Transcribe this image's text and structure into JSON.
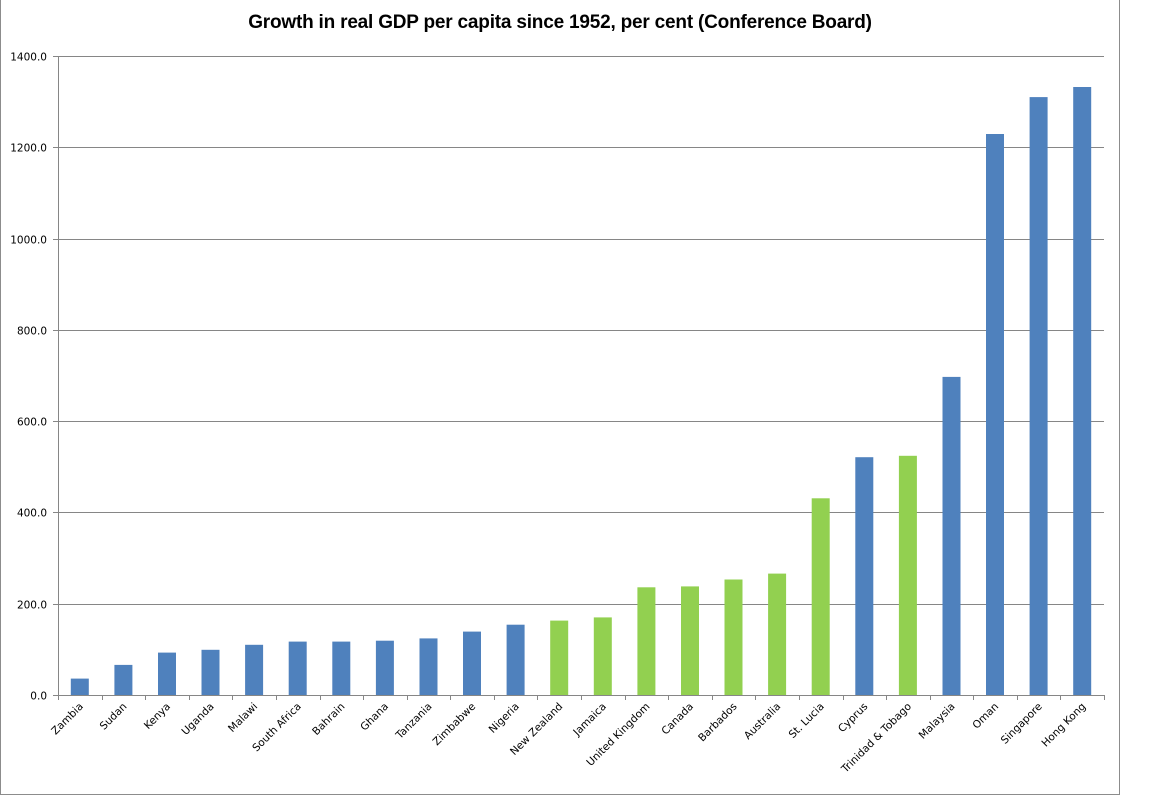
{
  "chart_data": {
    "type": "bar",
    "title": "Growth in real GDP per capita since 1952, per cent (Conference Board)",
    "xlabel": "",
    "ylabel": "",
    "ylim": [
      0,
      1400
    ],
    "yticks": [
      "0.0",
      "200.0",
      "400.0",
      "600.0",
      "800.0",
      "1000.0",
      "1200.0",
      "1400.0"
    ],
    "ytick_values": [
      0,
      200,
      400,
      600,
      800,
      1000,
      1200,
      1400
    ],
    "grid": true,
    "legend": "none",
    "colors": {
      "blue": "#4F81BD",
      "green": "#92D050"
    },
    "categories": [
      "Zambia",
      "Sudan",
      "Kenya",
      "Uganda",
      "Malawi",
      "South Africa",
      "Bahrain",
      "Ghana",
      "Tanzania",
      "Zimbabwe",
      "Nigeria",
      "New Zealand",
      "Jamaica",
      "United Kingdom",
      "Canada",
      "Barbados",
      "Australia",
      "St. Lucia",
      "Cyprus",
      "Trinidad & Tobago",
      "Malaysia",
      "Oman",
      "Singapore",
      "Hong Kong"
    ],
    "values": [
      36,
      66,
      93,
      99,
      110,
      117,
      117,
      119,
      124,
      139,
      154,
      163,
      170,
      236,
      238,
      253,
      266,
      431,
      521,
      524,
      697,
      1229,
      1310,
      1332
    ],
    "bar_colors": [
      "blue",
      "blue",
      "blue",
      "blue",
      "blue",
      "blue",
      "blue",
      "blue",
      "blue",
      "blue",
      "blue",
      "green",
      "green",
      "green",
      "green",
      "green",
      "green",
      "green",
      "blue",
      "green",
      "blue",
      "blue",
      "blue",
      "blue"
    ]
  }
}
